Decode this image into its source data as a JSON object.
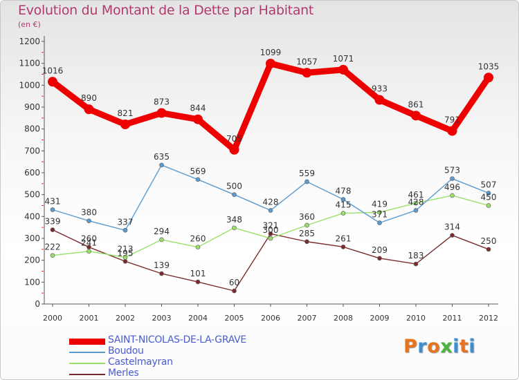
{
  "title": "Evolution du Montant de la Dette par Habitant",
  "subtitle": "(en €)",
  "brand": {
    "text": "Proxiti",
    "letter_colors": [
      "#e8731e",
      "#3d8fd1",
      "#e8731e",
      "#4bb43c",
      "#3d8fd1",
      "#e8731e",
      "#3d8fd1"
    ]
  },
  "chart_data": {
    "type": "line",
    "title": "Evolution du Montant de la Dette par Habitant",
    "subtitle": "(en €)",
    "xlabel": "",
    "ylabel": "",
    "x": [
      "2000",
      "2001",
      "2002",
      "2003",
      "2004",
      "2005",
      "2006",
      "2007",
      "2008",
      "2009",
      "2010",
      "2011",
      "2012"
    ],
    "ylim": [
      0,
      1200
    ],
    "yticks": [
      0,
      100,
      200,
      300,
      400,
      500,
      600,
      700,
      800,
      900,
      1000,
      1100,
      1200
    ],
    "grid": false,
    "legend_position": "bottom-left",
    "series": [
      {
        "name": "SAINT-NICOLAS-DE-LA-GRAVE",
        "color": "#ee0000",
        "values": [
          1016,
          890,
          821,
          873,
          844,
          705,
          1099,
          1057,
          1071,
          933,
          861,
          791,
          1035
        ]
      },
      {
        "name": "Boudou",
        "color": "#5a9bd0",
        "values": [
          431,
          380,
          337,
          635,
          569,
          500,
          428,
          559,
          478,
          371,
          428,
          573,
          507
        ]
      },
      {
        "name": "Castelmayran",
        "color": "#99e06a",
        "values": [
          222,
          241,
          213,
          294,
          260,
          348,
          300,
          360,
          415,
          419,
          461,
          496,
          450
        ]
      },
      {
        "name": "Merles",
        "color": "#7a2a2a",
        "values": [
          339,
          260,
          195,
          139,
          101,
          60,
          321,
          285,
          261,
          209,
          183,
          314,
          250
        ]
      }
    ]
  }
}
